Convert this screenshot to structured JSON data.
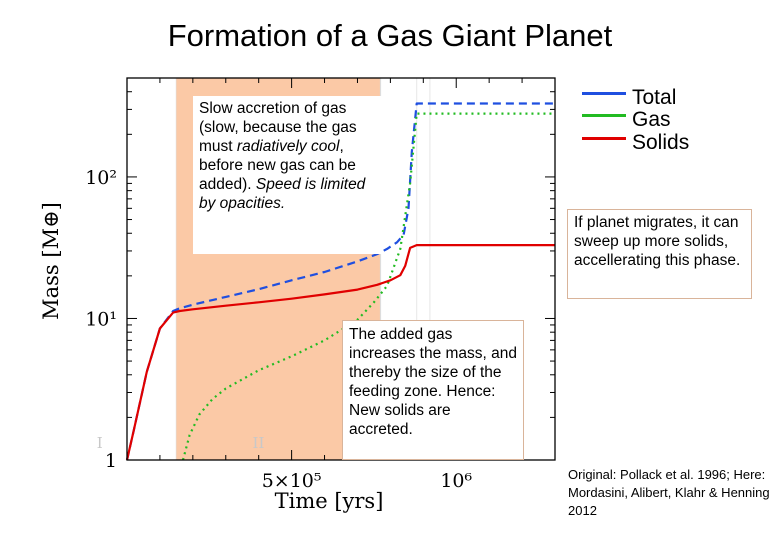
{
  "page": {
    "title": "Formation of a Gas Giant Planet",
    "source_note": "Original: Pollack et al. 1996; Here: Mordasini, Alibert, Klahr & Henning 2012"
  },
  "legend": [
    {
      "label": "Total",
      "color": "#1f4fe0"
    },
    {
      "label": "Gas",
      "color": "#22bb22"
    },
    {
      "label": "Solids",
      "color": "#e00000"
    }
  ],
  "annotations": {
    "slow_accretion": {
      "parts": [
        {
          "text": "Slow accretion of gas (slow, because the gas must ",
          "italic": false
        },
        {
          "text": "radiatively cool",
          "italic": true
        },
        {
          "text": ", before new gas can be added). ",
          "italic": false
        },
        {
          "text": "Speed is limited by opacities.",
          "italic": true
        }
      ]
    },
    "migration": "If planet migrates, it can sweep up more solids, accellerating this phase.",
    "added_gas": "The added gas increases the mass, and thereby the size of the feeding zone. Hence: New solids are accreted."
  },
  "chart_data": {
    "type": "line",
    "title": "",
    "xlabel": "Time [yrs]",
    "ylabel": "Mass [M⊕]",
    "x_ticks": [
      "5×10⁵",
      "10⁶"
    ],
    "y_ticks": [
      "1",
      "10¹",
      "10²"
    ],
    "y_scale": "log",
    "xlim": [
      0,
      1300000
    ],
    "ylim": [
      1,
      500
    ],
    "phases": [
      {
        "label": "I",
        "range": [
          0,
          150000
        ],
        "shaded": false
      },
      {
        "label": "II",
        "range": [
          150000,
          770000
        ],
        "shaded": true,
        "color": "#fbc9a6"
      }
    ],
    "series": [
      {
        "name": "Total",
        "color": "#1f4fe0",
        "dash": "dashed",
        "x": [
          0,
          20000,
          60000,
          100000,
          140000,
          160000,
          200000,
          300000,
          400000,
          500000,
          600000,
          700000,
          760000,
          790000,
          820000,
          840000,
          855000,
          865000,
          880000,
          900000,
          1300000
        ],
        "y": [
          1,
          1.6,
          4.2,
          8.5,
          11.3,
          11.8,
          12.5,
          14.2,
          16.1,
          18.6,
          21.3,
          25.3,
          28.5,
          31,
          34.5,
          39,
          60,
          150,
          330,
          330,
          330
        ]
      },
      {
        "name": "Gas",
        "color": "#22bb22",
        "dash": "dotted",
        "x": [
          170000,
          190000,
          220000,
          260000,
          300000,
          400000,
          500000,
          600000,
          700000,
          750000,
          790000,
          830000,
          860000,
          880000,
          1300000
        ],
        "y": [
          1,
          1.5,
          2.1,
          2.7,
          3.2,
          4.3,
          5.4,
          7,
          9.8,
          13,
          17,
          31,
          90,
          280,
          280
        ]
      },
      {
        "name": "Solids",
        "color": "#e00000",
        "dash": "solid",
        "x": [
          0,
          20000,
          60000,
          100000,
          140000,
          160000,
          200000,
          300000,
          400000,
          500000,
          600000,
          700000,
          760000,
          800000,
          830000,
          845000,
          860000,
          880000,
          900000,
          1300000
        ],
        "y": [
          1,
          1.6,
          4.2,
          8.5,
          11,
          11.3,
          11.6,
          12.3,
          13,
          13.8,
          14.8,
          16,
          17.3,
          18.6,
          20.2,
          23.5,
          31.5,
          33,
          33,
          33
        ]
      }
    ],
    "grid": false
  }
}
